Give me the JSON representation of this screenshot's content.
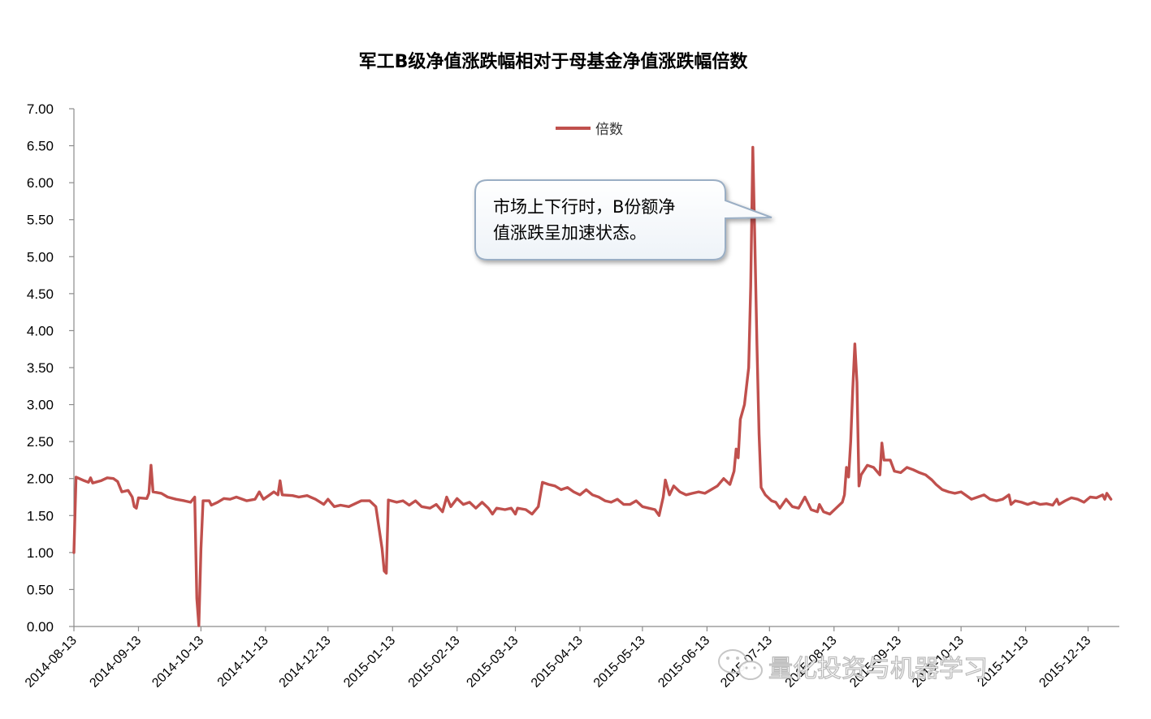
{
  "chart_data": {
    "type": "line",
    "title": "军工B级净值涨跌幅相对于母基金净值涨跌幅倍数",
    "xlabel": "",
    "ylabel": "",
    "ylim": [
      0,
      7
    ],
    "y_ticks": [
      "0.00",
      "0.50",
      "1.00",
      "1.50",
      "2.00",
      "2.50",
      "3.00",
      "3.50",
      "4.00",
      "4.50",
      "5.00",
      "5.50",
      "6.00",
      "6.50",
      "7.00"
    ],
    "x_ticks": [
      "2014-08-13",
      "2014-09-13",
      "2014-10-13",
      "2014-11-13",
      "2014-12-13",
      "2015-01-13",
      "2015-02-13",
      "2015-03-13",
      "2015-04-13",
      "2015-05-13",
      "2015-06-13",
      "2015-07-13",
      "2015-08-13",
      "2015-09-13",
      "2015-10-13",
      "2015-11-13",
      "2015-12-13"
    ],
    "legend_position": "top-center",
    "grid": false,
    "series": [
      {
        "name": "倍数",
        "color": "#c0504d",
        "points": [
          [
            "2014-08-13",
            1.0
          ],
          [
            "2014-08-14",
            2.02
          ],
          [
            "2014-08-18",
            1.97
          ],
          [
            "2014-08-20",
            1.95
          ],
          [
            "2014-08-21",
            2.01
          ],
          [
            "2014-08-22",
            1.94
          ],
          [
            "2014-08-26",
            1.97
          ],
          [
            "2014-08-29",
            2.01
          ],
          [
            "2014-09-01",
            2.0
          ],
          [
            "2014-09-03",
            1.96
          ],
          [
            "2014-09-05",
            1.82
          ],
          [
            "2014-09-08",
            1.84
          ],
          [
            "2014-09-10",
            1.75
          ],
          [
            "2014-09-11",
            1.62
          ],
          [
            "2014-09-12",
            1.6
          ],
          [
            "2014-09-13",
            1.74
          ],
          [
            "2014-09-17",
            1.73
          ],
          [
            "2014-09-18",
            1.8
          ],
          [
            "2014-09-19",
            2.18
          ],
          [
            "2014-09-20",
            1.82
          ],
          [
            "2014-09-24",
            1.8
          ],
          [
            "2014-09-27",
            1.75
          ],
          [
            "2014-10-01",
            1.72
          ],
          [
            "2014-10-05",
            1.7
          ],
          [
            "2014-10-08",
            1.68
          ],
          [
            "2014-10-10",
            1.75
          ],
          [
            "2014-10-11",
            0.38
          ],
          [
            "2014-10-12",
            0.01
          ],
          [
            "2014-10-13",
            1.05
          ],
          [
            "2014-10-14",
            1.7
          ],
          [
            "2014-10-17",
            1.7
          ],
          [
            "2014-10-18",
            1.64
          ],
          [
            "2014-10-21",
            1.68
          ],
          [
            "2014-10-24",
            1.73
          ],
          [
            "2014-10-27",
            1.72
          ],
          [
            "2014-10-30",
            1.75
          ],
          [
            "2014-11-04",
            1.7
          ],
          [
            "2014-11-08",
            1.72
          ],
          [
            "2014-11-10",
            1.82
          ],
          [
            "2014-11-12",
            1.72
          ],
          [
            "2014-11-15",
            1.78
          ],
          [
            "2014-11-17",
            1.82
          ],
          [
            "2014-11-19",
            1.78
          ],
          [
            "2014-11-20",
            1.97
          ],
          [
            "2014-11-21",
            1.78
          ],
          [
            "2014-11-26",
            1.77
          ],
          [
            "2014-11-29",
            1.75
          ],
          [
            "2014-12-03",
            1.77
          ],
          [
            "2014-12-07",
            1.72
          ],
          [
            "2014-12-11",
            1.65
          ],
          [
            "2014-12-13",
            1.72
          ],
          [
            "2014-12-16",
            1.62
          ],
          [
            "2014-12-19",
            1.64
          ],
          [
            "2014-12-23",
            1.62
          ],
          [
            "2014-12-26",
            1.66
          ],
          [
            "2014-12-29",
            1.7
          ],
          [
            "2015-01-02",
            1.7
          ],
          [
            "2015-01-05",
            1.62
          ],
          [
            "2015-01-08",
            1.05
          ],
          [
            "2015-01-09",
            0.75
          ],
          [
            "2015-01-10",
            0.72
          ],
          [
            "2015-01-11",
            1.71
          ],
          [
            "2015-01-15",
            1.68
          ],
          [
            "2015-01-18",
            1.7
          ],
          [
            "2015-01-21",
            1.64
          ],
          [
            "2015-01-24",
            1.7
          ],
          [
            "2015-01-27",
            1.62
          ],
          [
            "2015-01-31",
            1.6
          ],
          [
            "2015-02-03",
            1.65
          ],
          [
            "2015-02-06",
            1.55
          ],
          [
            "2015-02-08",
            1.75
          ],
          [
            "2015-02-10",
            1.62
          ],
          [
            "2015-02-13",
            1.73
          ],
          [
            "2015-02-16",
            1.65
          ],
          [
            "2015-02-19",
            1.68
          ],
          [
            "2015-02-22",
            1.6
          ],
          [
            "2015-02-25",
            1.68
          ],
          [
            "2015-02-28",
            1.6
          ],
          [
            "2015-03-02",
            1.52
          ],
          [
            "2015-03-04",
            1.6
          ],
          [
            "2015-03-08",
            1.58
          ],
          [
            "2015-03-11",
            1.6
          ],
          [
            "2015-03-13",
            1.52
          ],
          [
            "2015-03-14",
            1.6
          ],
          [
            "2015-03-18",
            1.58
          ],
          [
            "2015-03-21",
            1.52
          ],
          [
            "2015-03-24",
            1.62
          ],
          [
            "2015-03-26",
            1.95
          ],
          [
            "2015-03-29",
            1.92
          ],
          [
            "2015-04-01",
            1.9
          ],
          [
            "2015-04-04",
            1.85
          ],
          [
            "2015-04-07",
            1.88
          ],
          [
            "2015-04-10",
            1.82
          ],
          [
            "2015-04-13",
            1.78
          ],
          [
            "2015-04-16",
            1.85
          ],
          [
            "2015-04-19",
            1.78
          ],
          [
            "2015-04-22",
            1.75
          ],
          [
            "2015-04-25",
            1.7
          ],
          [
            "2015-04-28",
            1.68
          ],
          [
            "2015-05-01",
            1.72
          ],
          [
            "2015-05-04",
            1.65
          ],
          [
            "2015-05-07",
            1.65
          ],
          [
            "2015-05-10",
            1.7
          ],
          [
            "2015-05-13",
            1.62
          ],
          [
            "2015-05-16",
            1.6
          ],
          [
            "2015-05-19",
            1.58
          ],
          [
            "2015-05-21",
            1.5
          ],
          [
            "2015-05-23",
            1.75
          ],
          [
            "2015-05-24",
            1.98
          ],
          [
            "2015-05-26",
            1.78
          ],
          [
            "2015-05-28",
            1.9
          ],
          [
            "2015-05-31",
            1.82
          ],
          [
            "2015-06-03",
            1.78
          ],
          [
            "2015-06-06",
            1.8
          ],
          [
            "2015-06-09",
            1.82
          ],
          [
            "2015-06-12",
            1.8
          ],
          [
            "2015-06-15",
            1.85
          ],
          [
            "2015-06-18",
            1.9
          ],
          [
            "2015-06-21",
            2.0
          ],
          [
            "2015-06-24",
            1.92
          ],
          [
            "2015-06-26",
            2.1
          ],
          [
            "2015-06-27",
            2.4
          ],
          [
            "2015-06-28",
            2.28
          ],
          [
            "2015-06-29",
            2.8
          ],
          [
            "2015-07-01",
            3.0
          ],
          [
            "2015-07-03",
            3.5
          ],
          [
            "2015-07-04",
            4.6
          ],
          [
            "2015-07-05",
            6.48
          ],
          [
            "2015-07-06",
            5.2
          ],
          [
            "2015-07-07",
            3.8
          ],
          [
            "2015-07-08",
            2.6
          ],
          [
            "2015-07-09",
            1.88
          ],
          [
            "2015-07-11",
            1.78
          ],
          [
            "2015-07-14",
            1.7
          ],
          [
            "2015-07-16",
            1.68
          ],
          [
            "2015-07-18",
            1.6
          ],
          [
            "2015-07-21",
            1.72
          ],
          [
            "2015-07-24",
            1.62
          ],
          [
            "2015-07-27",
            1.6
          ],
          [
            "2015-07-30",
            1.75
          ],
          [
            "2015-08-02",
            1.58
          ],
          [
            "2015-08-05",
            1.55
          ],
          [
            "2015-08-06",
            1.65
          ],
          [
            "2015-08-08",
            1.55
          ],
          [
            "2015-08-11",
            1.52
          ],
          [
            "2015-08-14",
            1.6
          ],
          [
            "2015-08-17",
            1.68
          ],
          [
            "2015-08-18",
            1.78
          ],
          [
            "2015-08-19",
            2.15
          ],
          [
            "2015-08-20",
            2.02
          ],
          [
            "2015-08-21",
            2.5
          ],
          [
            "2015-08-22",
            3.2
          ],
          [
            "2015-08-23",
            3.82
          ],
          [
            "2015-08-24",
            3.3
          ],
          [
            "2015-08-25",
            1.9
          ],
          [
            "2015-08-26",
            2.05
          ],
          [
            "2015-08-29",
            2.18
          ],
          [
            "2015-09-01",
            2.15
          ],
          [
            "2015-09-04",
            2.05
          ],
          [
            "2015-09-05",
            2.48
          ],
          [
            "2015-09-06",
            2.25
          ],
          [
            "2015-09-09",
            2.25
          ],
          [
            "2015-09-11",
            2.1
          ],
          [
            "2015-09-14",
            2.08
          ],
          [
            "2015-09-17",
            2.15
          ],
          [
            "2015-09-20",
            2.12
          ],
          [
            "2015-09-23",
            2.08
          ],
          [
            "2015-09-26",
            2.05
          ],
          [
            "2015-09-29",
            1.98
          ],
          [
            "2015-10-01",
            1.92
          ],
          [
            "2015-10-04",
            1.85
          ],
          [
            "2015-10-07",
            1.82
          ],
          [
            "2015-10-10",
            1.8
          ],
          [
            "2015-10-13",
            1.82
          ],
          [
            "2015-10-15",
            1.78
          ],
          [
            "2015-10-18",
            1.72
          ],
          [
            "2015-10-21",
            1.75
          ],
          [
            "2015-10-24",
            1.78
          ],
          [
            "2015-10-27",
            1.72
          ],
          [
            "2015-10-30",
            1.7
          ],
          [
            "2015-11-02",
            1.72
          ],
          [
            "2015-11-05",
            1.78
          ],
          [
            "2015-11-06",
            1.65
          ],
          [
            "2015-11-08",
            1.7
          ],
          [
            "2015-11-11",
            1.68
          ],
          [
            "2015-11-14",
            1.65
          ],
          [
            "2015-11-17",
            1.68
          ],
          [
            "2015-11-20",
            1.65
          ],
          [
            "2015-11-23",
            1.66
          ],
          [
            "2015-11-26",
            1.64
          ],
          [
            "2015-11-28",
            1.72
          ],
          [
            "2015-11-29",
            1.65
          ],
          [
            "2015-12-02",
            1.7
          ],
          [
            "2015-12-05",
            1.74
          ],
          [
            "2015-12-08",
            1.72
          ],
          [
            "2015-12-11",
            1.68
          ],
          [
            "2015-12-14",
            1.75
          ],
          [
            "2015-12-17",
            1.74
          ],
          [
            "2015-12-20",
            1.78
          ],
          [
            "2015-12-21",
            1.72
          ],
          [
            "2015-12-22",
            1.8
          ],
          [
            "2015-12-24",
            1.72
          ]
        ]
      }
    ],
    "annotations": [
      {
        "text_line1": "市场上下行时，B份额净",
        "text_line2": "值涨跌呈加速状态。",
        "target_date": "2015-07-05",
        "target_value": 5.4
      }
    ]
  },
  "watermark": {
    "text": "量化投资与机器学习",
    "icon": "wechat-icon"
  }
}
